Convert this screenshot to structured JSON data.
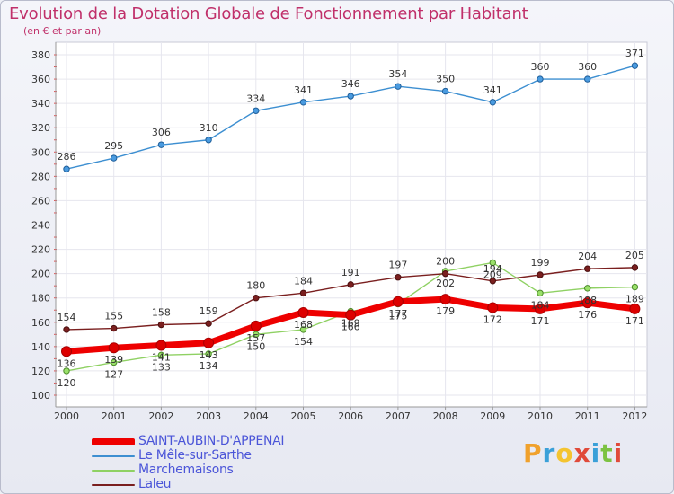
{
  "chart_data": {
    "type": "line",
    "title": "Evolution de la Dotation Globale de Fonctionnement par Habitant",
    "subtitle": "(en € et par an)",
    "xlabel": "",
    "ylabel": "",
    "x": [
      "2000",
      "2001",
      "2002",
      "2003",
      "2004",
      "2005",
      "2006",
      "2007",
      "2008",
      "2009",
      "2010",
      "2011",
      "2012"
    ],
    "ylim": [
      100,
      380
    ],
    "yticks": [
      100,
      120,
      140,
      160,
      180,
      200,
      220,
      240,
      260,
      280,
      300,
      320,
      340,
      360,
      380
    ],
    "grid": true,
    "legend_position": "bottom-left",
    "series": [
      {
        "name": "SAINT-AUBIN-D'APPENAI",
        "color": "#ee0000",
        "values": [
          136,
          139,
          141,
          143,
          157,
          168,
          166,
          177,
          179,
          172,
          171,
          176,
          171
        ]
      },
      {
        "name": "Le Mêle-sur-Sarthe",
        "color": "#3d8fd1",
        "values": [
          286,
          295,
          306,
          310,
          334,
          341,
          346,
          354,
          350,
          341,
          360,
          360,
          371
        ]
      },
      {
        "name": "Marchemaisons",
        "color": "#8fd163",
        "values": [
          120,
          127,
          133,
          134,
          150,
          154,
          169,
          175,
          202,
          209,
          184,
          188,
          189
        ]
      },
      {
        "name": "Laleu",
        "color": "#7a1f1f",
        "values": [
          154,
          155,
          158,
          159,
          180,
          184,
          191,
          197,
          200,
          194,
          199,
          204,
          205
        ]
      }
    ]
  },
  "logo": {
    "letters": [
      "P",
      "r",
      "o",
      "x",
      "i",
      "t",
      "i"
    ]
  }
}
